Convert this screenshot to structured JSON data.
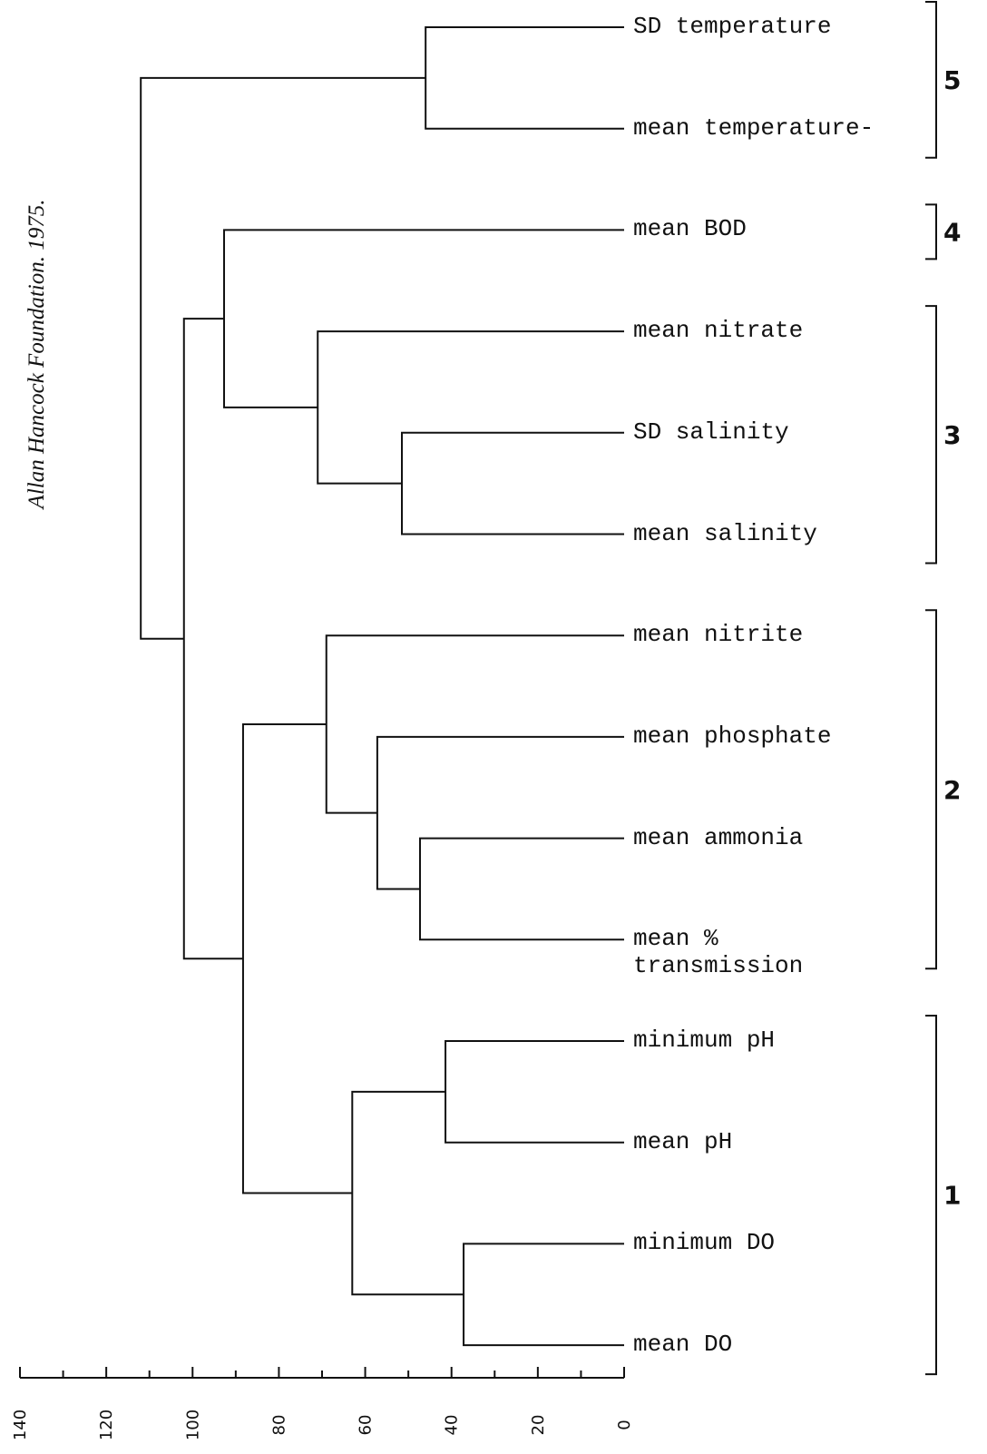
{
  "chart_data": {
    "type": "dendrogram",
    "annotation": "Allan Hancock Foundation.  1975.",
    "leaves": [
      "SD temperature",
      "mean temperature-",
      "mean BOD",
      "mean nitrate",
      "SD salinity",
      "mean salinity",
      "mean nitrite",
      "mean phosphate",
      "mean ammonia",
      "mean %\ntransmission",
      "minimum pH",
      "mean pH",
      "minimum DO",
      "mean DO"
    ],
    "merges": [
      {
        "left": 0,
        "right": 1,
        "height": 46
      },
      {
        "left": 4,
        "right": 5,
        "height": 51.5
      },
      {
        "left": 3,
        "right": 15,
        "height": 71
      },
      {
        "left": 2,
        "right": 16,
        "height": 92.7
      },
      {
        "left": 8,
        "right": 9,
        "height": 47.3
      },
      {
        "left": 7,
        "right": 18,
        "height": 57.2
      },
      {
        "left": 6,
        "right": 19,
        "height": 69
      },
      {
        "left": 10,
        "right": 11,
        "height": 41.4
      },
      {
        "left": 12,
        "right": 13,
        "height": 37.2
      },
      {
        "left": 21,
        "right": 22,
        "height": 63
      },
      {
        "left": 20,
        "right": 23,
        "height": 88.3
      },
      {
        "left": 17,
        "right": 24,
        "height": 102
      },
      {
        "left": 14,
        "right": 25,
        "height": 112
      }
    ],
    "clusters": [
      {
        "label": "5",
        "leaves": [
          0,
          1
        ]
      },
      {
        "label": "4",
        "leaves": [
          2,
          2
        ]
      },
      {
        "label": "3",
        "leaves": [
          3,
          5
        ]
      },
      {
        "label": "2",
        "leaves": [
          6,
          9
        ]
      },
      {
        "label": "1",
        "leaves": [
          10,
          13
        ]
      }
    ],
    "xlim": [
      140,
      0
    ],
    "xticks": [
      140,
      120,
      100,
      80,
      60,
      40,
      20,
      0
    ],
    "xminor": [
      130,
      110,
      90,
      70,
      50,
      30,
      10
    ]
  }
}
